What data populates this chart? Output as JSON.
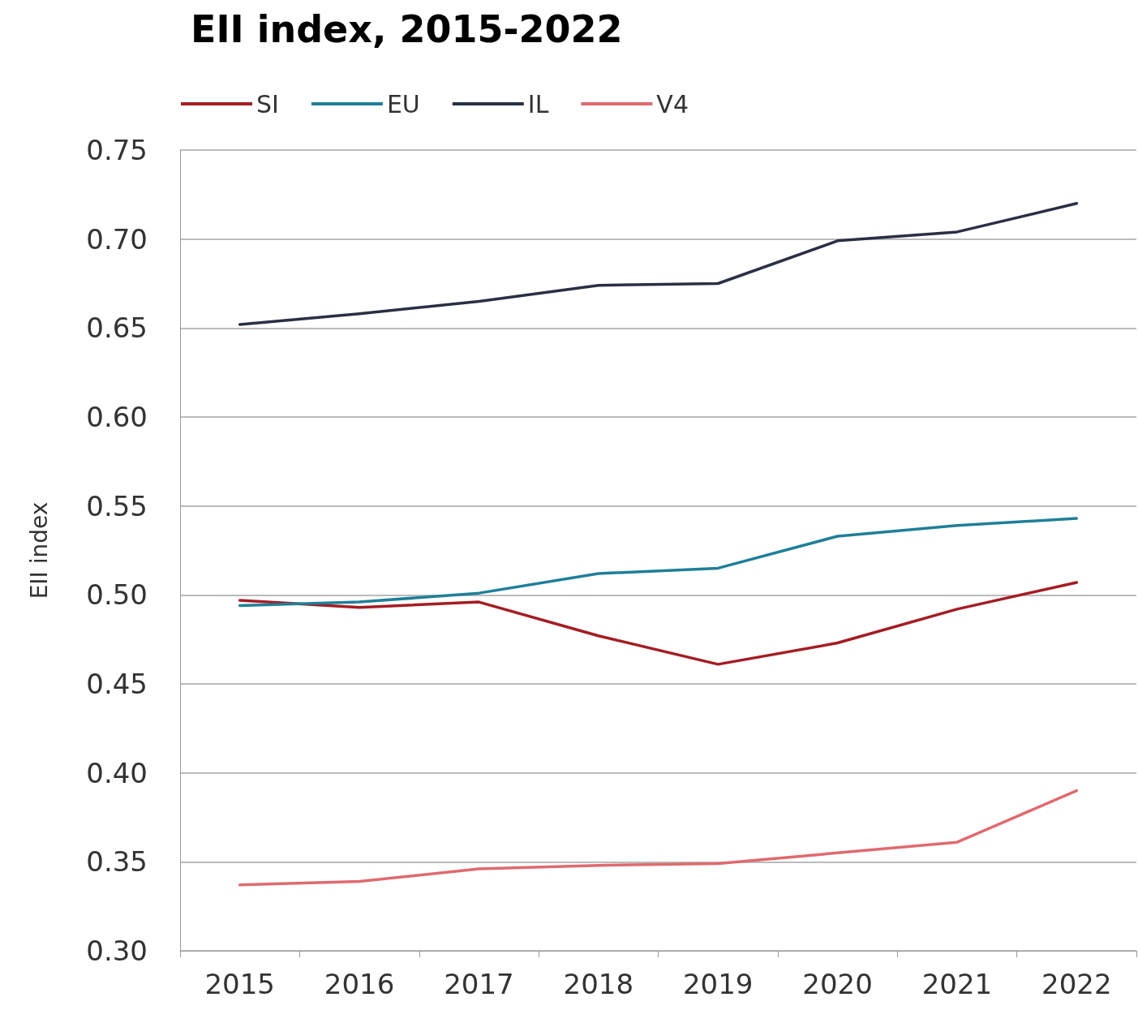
{
  "chart_data": {
    "type": "line",
    "title": "EII index, 2015-2022",
    "ylabel": "EII index",
    "categories": [
      "2015",
      "2016",
      "2017",
      "2018",
      "2019",
      "2020",
      "2021",
      "2022"
    ],
    "series": [
      {
        "name": "SI",
        "color": "#a51c24",
        "values": [
          0.497,
          0.493,
          0.496,
          0.477,
          0.461,
          0.473,
          0.492,
          0.507
        ]
      },
      {
        "name": "EU",
        "color": "#1f7f98",
        "values": [
          0.494,
          0.496,
          0.501,
          0.512,
          0.515,
          0.533,
          0.539,
          0.543
        ]
      },
      {
        "name": "IL",
        "color": "#2b2f45",
        "values": [
          0.652,
          0.658,
          0.665,
          0.674,
          0.675,
          0.699,
          0.704,
          0.72
        ]
      },
      {
        "name": "V4",
        "color": "#e06a6f",
        "values": [
          0.337,
          0.339,
          0.346,
          0.348,
          0.349,
          0.355,
          0.361,
          0.39
        ]
      }
    ],
    "ylim": [
      0.3,
      0.75
    ],
    "yticks": [
      {
        "value": 0.3,
        "label": "0.30"
      },
      {
        "value": 0.35,
        "label": "0.35"
      },
      {
        "value": 0.4,
        "label": "0.40"
      },
      {
        "value": 0.45,
        "label": "0.45"
      },
      {
        "value": 0.5,
        "label": "0.50"
      },
      {
        "value": 0.55,
        "label": "0.55"
      },
      {
        "value": 0.6,
        "label": "0.60"
      },
      {
        "value": 0.65,
        "label": "0.65"
      },
      {
        "value": 0.7,
        "label": "0.70"
      },
      {
        "value": 0.75,
        "label": "0.75"
      }
    ],
    "grid": "y",
    "legend": "top left",
    "marker": "none",
    "line_style": "solid"
  }
}
